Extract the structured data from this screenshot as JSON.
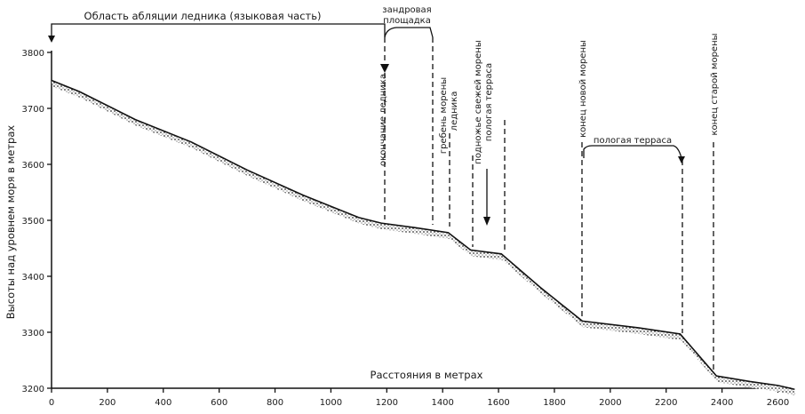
{
  "top_labels": {
    "ablation_zone": "Область абляции ледника (языковая часть)",
    "sandur_line1": "зандровая",
    "sandur_line2": "площадка"
  },
  "axes": {
    "ylabel": "Высоты над уровнем моря в метрах",
    "xlabel": "Расстояния в метрах",
    "y_ticks": [
      "3200",
      "3300",
      "3400",
      "3500",
      "3600",
      "3700",
      "3800"
    ],
    "x_ticks": [
      "0",
      "200",
      "400",
      "600",
      "800",
      "1000",
      "1200",
      "1400",
      "1600",
      "1800",
      "2000",
      "2200",
      "2400",
      "2600"
    ]
  },
  "annotations": {
    "glacier_end": "окончание ледника",
    "moraine_crest_1": "гребень морены",
    "moraine_crest_2": "ледника",
    "fresh_moraine_foot": "подножье свежей морены",
    "gentle_terrace_1": "пологая терраса",
    "new_moraine_end": "конец новой морены",
    "gentle_terrace_2": "пологая терраса",
    "old_moraine_end": "конец старой морены"
  },
  "chart_data": {
    "type": "line",
    "xlabel": "Расстояния в метрах",
    "ylabel": "Высоты над уровнем моря в метрах",
    "xlim": [
      0,
      2700
    ],
    "ylim": [
      3200,
      3800
    ],
    "series": [
      {
        "x": [
          0,
          100,
          300,
          500,
          700,
          900,
          1100,
          1180,
          1300,
          1420,
          1500,
          1610,
          1750,
          1900,
          2100,
          2250,
          2380,
          2500,
          2600,
          2660
        ],
        "values": [
          3750,
          3730,
          3680,
          3640,
          3590,
          3545,
          3505,
          3495,
          3487,
          3478,
          3447,
          3440,
          3380,
          3320,
          3308,
          3297,
          3222,
          3212,
          3205,
          3198
        ]
      }
    ]
  }
}
